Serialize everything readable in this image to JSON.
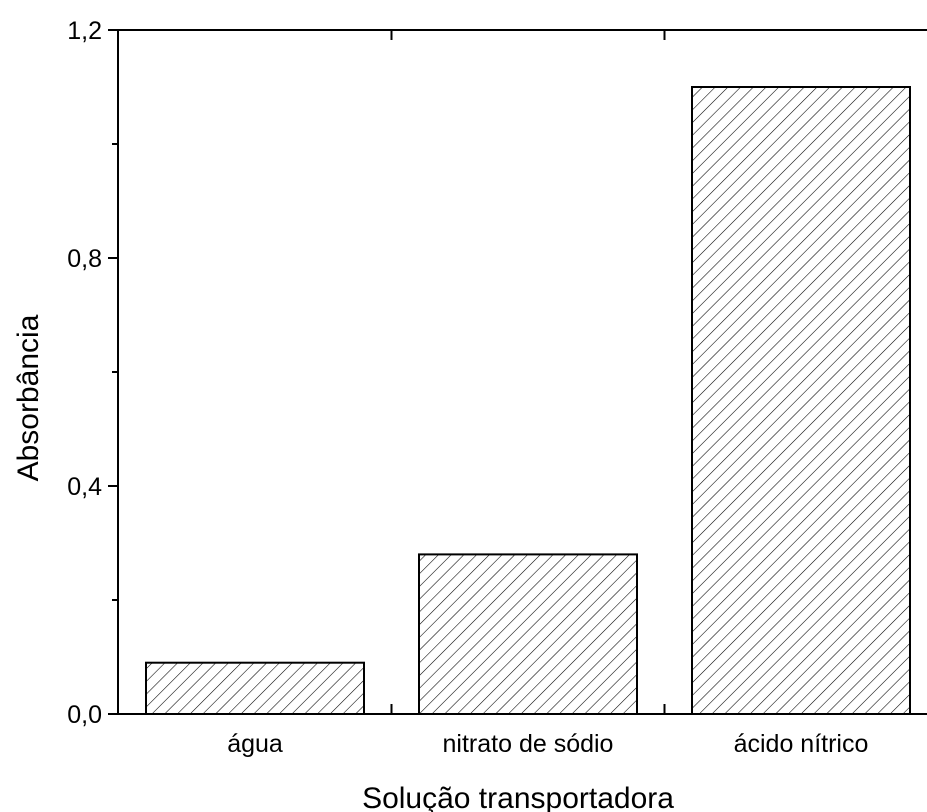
{
  "chart_data": {
    "type": "bar",
    "categories": [
      "água",
      "nitrato de sódio",
      "ácido nítrico"
    ],
    "values": [
      0.09,
      0.28,
      1.1
    ],
    "xlabel": "Solução transportadora",
    "ylabel": "Absorbância",
    "ylim": [
      0,
      1.2
    ],
    "yticks": [
      0.0,
      0.4,
      0.8,
      1.2
    ],
    "ytick_labels": [
      "0,0",
      "0,4",
      "0,8",
      "1,2"
    ],
    "grid": false,
    "bar_fill": "diagonal-hatch",
    "colors": {
      "bar_edge": "#000000",
      "hatch": "#000000",
      "background": "#ffffff"
    }
  }
}
